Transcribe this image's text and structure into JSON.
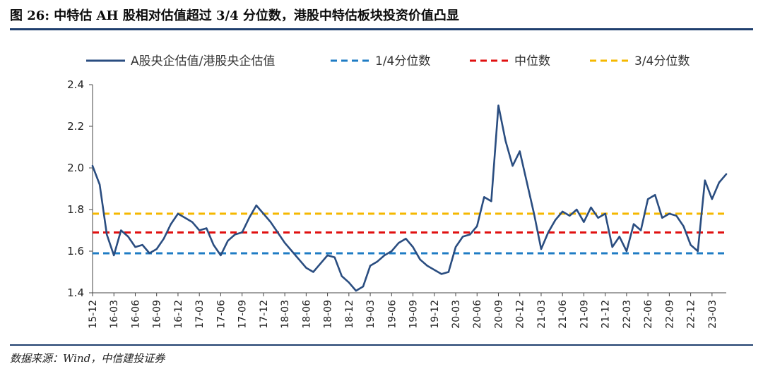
{
  "header": {
    "title": "图 26:  中特估 AH 股相对估值超过 3/4 分位数，港股中特估板块投资价值凸显"
  },
  "footer": {
    "source": "数据来源：Wind，中信建投证券"
  },
  "chart_data": {
    "type": "line",
    "title": "",
    "xlabel": "",
    "ylabel": "",
    "ylim": [
      1.4,
      2.4
    ],
    "yticks": [
      "1.4",
      "1.6",
      "1.8",
      "2.0",
      "2.2",
      "2.4"
    ],
    "x_ticks": [
      "15-12",
      "16-03",
      "16-06",
      "16-09",
      "16-12",
      "17-03",
      "17-06",
      "17-09",
      "17-12",
      "18-03",
      "18-06",
      "18-09",
      "18-12",
      "19-03",
      "19-06",
      "19-09",
      "19-12",
      "20-03",
      "20-06",
      "20-09",
      "20-12",
      "21-03",
      "21-06",
      "21-09",
      "21-12",
      "22-03",
      "22-06",
      "22-09",
      "22-12",
      "23-03"
    ],
    "x_range": [
      "2015-12",
      "2023-05"
    ],
    "grid": false,
    "legend_position": "top",
    "series": [
      {
        "name": "A股央企估值/港股央企估值",
        "style": "solid",
        "color": "#2a4d80",
        "x": [
          "2015-12",
          "2016-01",
          "2016-02",
          "2016-03",
          "2016-04",
          "2016-05",
          "2016-06",
          "2016-07",
          "2016-08",
          "2016-09",
          "2016-10",
          "2016-11",
          "2016-12",
          "2017-01",
          "2017-02",
          "2017-03",
          "2017-04",
          "2017-05",
          "2017-06",
          "2017-07",
          "2017-08",
          "2017-09",
          "2017-10",
          "2017-11",
          "2017-12",
          "2018-01",
          "2018-02",
          "2018-03",
          "2018-04",
          "2018-05",
          "2018-06",
          "2018-07",
          "2018-08",
          "2018-09",
          "2018-10",
          "2018-11",
          "2018-12",
          "2019-01",
          "2019-02",
          "2019-03",
          "2019-04",
          "2019-05",
          "2019-06",
          "2019-07",
          "2019-08",
          "2019-09",
          "2019-10",
          "2019-11",
          "2019-12",
          "2020-01",
          "2020-02",
          "2020-03",
          "2020-04",
          "2020-05",
          "2020-06",
          "2020-07",
          "2020-08",
          "2020-09",
          "2020-10",
          "2020-11",
          "2020-12",
          "2021-01",
          "2021-02",
          "2021-03",
          "2021-04",
          "2021-05",
          "2021-06",
          "2021-07",
          "2021-08",
          "2021-09",
          "2021-10",
          "2021-11",
          "2021-12",
          "2022-01",
          "2022-02",
          "2022-03",
          "2022-04",
          "2022-05",
          "2022-06",
          "2022-07",
          "2022-08",
          "2022-09",
          "2022-10",
          "2022-11",
          "2022-12",
          "2023-01",
          "2023-02",
          "2023-03",
          "2023-04",
          "2023-05"
        ],
        "values": [
          2.01,
          1.92,
          1.68,
          1.58,
          1.7,
          1.67,
          1.62,
          1.63,
          1.59,
          1.61,
          1.66,
          1.73,
          1.78,
          1.76,
          1.74,
          1.7,
          1.71,
          1.63,
          1.58,
          1.65,
          1.68,
          1.69,
          1.76,
          1.82,
          1.78,
          1.74,
          1.69,
          1.64,
          1.6,
          1.56,
          1.52,
          1.5,
          1.54,
          1.58,
          1.57,
          1.48,
          1.45,
          1.41,
          1.43,
          1.53,
          1.55,
          1.58,
          1.6,
          1.64,
          1.66,
          1.62,
          1.56,
          1.53,
          1.51,
          1.49,
          1.5,
          1.62,
          1.67,
          1.68,
          1.72,
          1.86,
          1.84,
          2.3,
          2.13,
          2.01,
          2.08,
          1.93,
          1.78,
          1.61,
          1.69,
          1.75,
          1.79,
          1.77,
          1.8,
          1.74,
          1.81,
          1.76,
          1.78,
          1.62,
          1.67,
          1.6,
          1.73,
          1.7,
          1.85,
          1.87,
          1.76,
          1.78,
          1.77,
          1.72,
          1.63,
          1.6,
          1.94,
          1.85,
          1.93,
          1.97
        ]
      },
      {
        "name": "1/4分位数",
        "style": "dashed",
        "color": "#1f7cc4",
        "y": 1.59
      },
      {
        "name": "中位数",
        "style": "dashed",
        "color": "#e01010",
        "y": 1.69
      },
      {
        "name": "3/4分位数",
        "style": "dashed",
        "color": "#f5b800",
        "y": 1.78
      }
    ]
  }
}
